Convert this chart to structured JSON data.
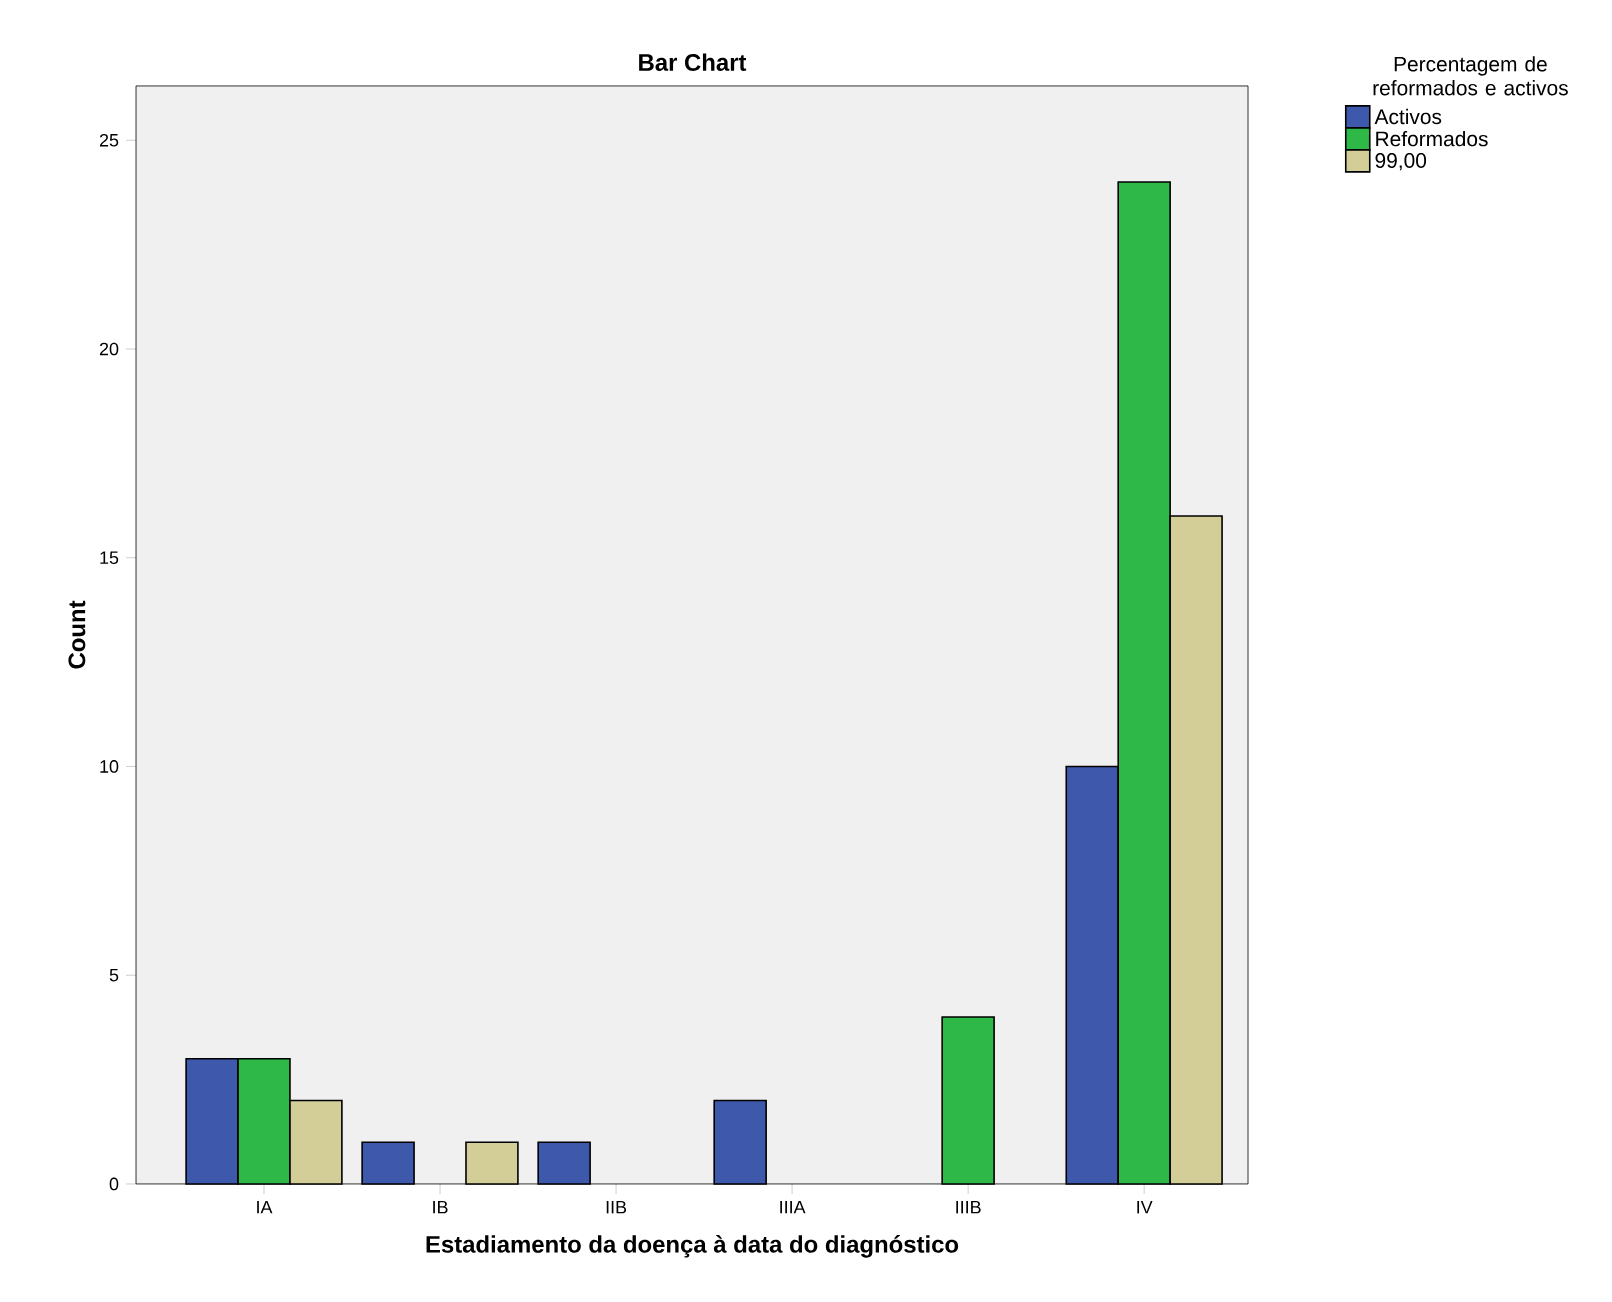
{
  "chart_data": {
    "type": "bar",
    "title": "Bar Chart",
    "xlabel": "Estadiamento da doença à data do diagnóstico",
    "ylabel": "Count",
    "legend_title": "Percentagem de reformados e activos",
    "categories": [
      "IA",
      "IB",
      "IIB",
      "IIIA",
      "IIIB",
      "IV"
    ],
    "series": [
      {
        "name": "Activos",
        "color": "#3e58ac",
        "values": [
          3,
          1,
          1,
          2,
          null,
          10
        ]
      },
      {
        "name": "Reformados",
        "color": "#2eb848",
        "values": [
          3,
          null,
          null,
          null,
          4,
          24
        ]
      },
      {
        "name": "99,00",
        "color": "#d3ce97",
        "values": [
          2,
          1,
          null,
          null,
          null,
          16
        ]
      }
    ],
    "ylim": [
      0,
      26.3
    ],
    "yticks": [
      0,
      5,
      10,
      15,
      20,
      25
    ],
    "grid": false,
    "legend": "top right"
  }
}
